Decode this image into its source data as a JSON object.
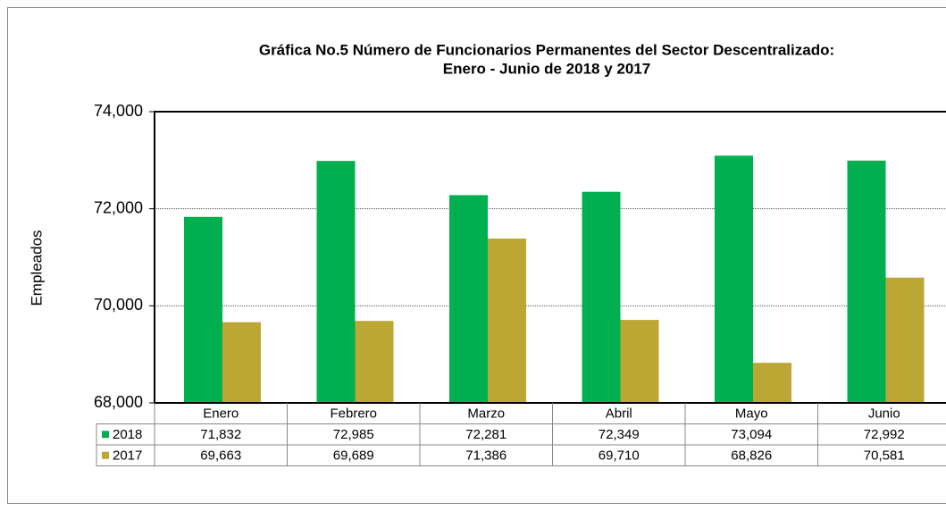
{
  "chart_data": {
    "type": "bar",
    "title": [
      "Gráfica No.5 Número de Funcionarios Permanentes del Sector Descentralizado:",
      "Enero - Junio de 2018 y 2017"
    ],
    "y_label": "Empleados",
    "categories": [
      "Enero",
      "Febrero",
      "Marzo",
      "Abril",
      "Mayo",
      "Junio"
    ],
    "series": [
      {
        "name": "2018",
        "color": "#00b050",
        "values": [
          71832,
          72985,
          72281,
          72349,
          73094,
          72992
        ],
        "value_labels": [
          "71,832",
          "72,985",
          "72,281",
          "72,349",
          "73,094",
          "72,992"
        ]
      },
      {
        "name": "2017",
        "color": "#bca634",
        "values": [
          69663,
          69689,
          71386,
          69710,
          68826,
          70581
        ],
        "value_labels": [
          "69,663",
          "69,689",
          "71,386",
          "69,710",
          "68,826",
          "70,581"
        ]
      }
    ],
    "ylim": [
      68000,
      74000
    ],
    "yticks": [
      {
        "value": 68000,
        "label": "68,000"
      },
      {
        "value": 70000,
        "label": "70,000"
      },
      {
        "value": 72000,
        "label": "72,000"
      },
      {
        "value": 74000,
        "label": "74,000"
      }
    ],
    "grid": true
  }
}
